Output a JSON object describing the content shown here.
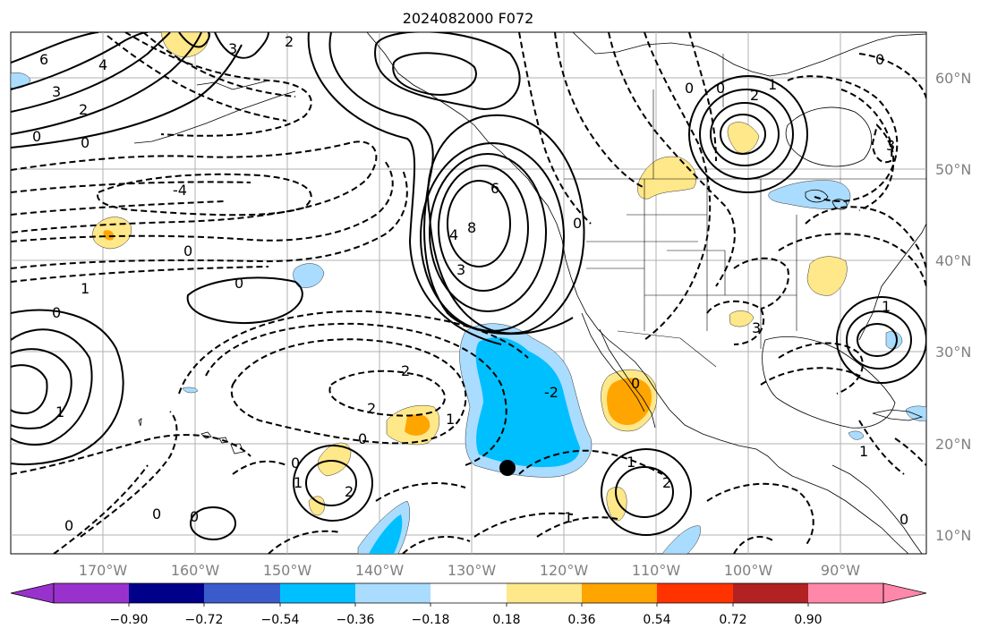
{
  "title": "2024082000 F072",
  "lon_labels": [
    "170°W",
    "160°W",
    "150°W",
    "140°W",
    "130°W",
    "120°W",
    "110°W",
    "100°W",
    "90°W"
  ],
  "lat_labels": [
    "60°N",
    "50°N",
    "40°N",
    "30°N",
    "20°N",
    "10°N"
  ],
  "colorbar": {
    "colors": [
      "#9932cc",
      "#00008b",
      "#3a5bcc",
      "#00bfff",
      "#aadcff",
      "#ffffff",
      "#ffe88a",
      "#ffa500",
      "#ff3300",
      "#b22222",
      "#ff88aa"
    ],
    "tick_labels": [
      "−0.90",
      "−0.72",
      "−0.54",
      "−0.36",
      "−0.18",
      "0.18",
      "0.36",
      "0.54",
      "0.72",
      "0.90"
    ]
  },
  "contour_labels": [
    {
      "text": "6"
    },
    {
      "text": "4"
    },
    {
      "text": "3"
    },
    {
      "text": "2"
    },
    {
      "text": "0"
    },
    {
      "text": "0"
    },
    {
      "text": "3"
    },
    {
      "text": "2"
    },
    {
      "text": "-4"
    },
    {
      "text": "0"
    },
    {
      "text": "1"
    },
    {
      "text": "0"
    },
    {
      "text": "0"
    },
    {
      "text": "6"
    },
    {
      "text": "8"
    },
    {
      "text": "4"
    },
    {
      "text": "3"
    },
    {
      "text": "0"
    },
    {
      "text": "2"
    },
    {
      "text": "-2"
    },
    {
      "text": "2"
    },
    {
      "text": "1"
    },
    {
      "text": "0"
    },
    {
      "text": "0"
    },
    {
      "text": "1"
    },
    {
      "text": "2"
    },
    {
      "text": "0"
    },
    {
      "text": "0"
    },
    {
      "text": "1"
    },
    {
      "text": "0"
    },
    {
      "text": "1"
    },
    {
      "text": "2"
    },
    {
      "text": "0"
    },
    {
      "text": "1"
    },
    {
      "text": "3"
    },
    {
      "text": "0"
    },
    {
      "text": "1"
    },
    {
      "text": "0"
    },
    {
      "text": "3"
    },
    {
      "text": "2"
    },
    {
      "text": "1"
    },
    {
      "text": "0"
    },
    {
      "text": "0"
    },
    {
      "text": "1"
    }
  ]
}
